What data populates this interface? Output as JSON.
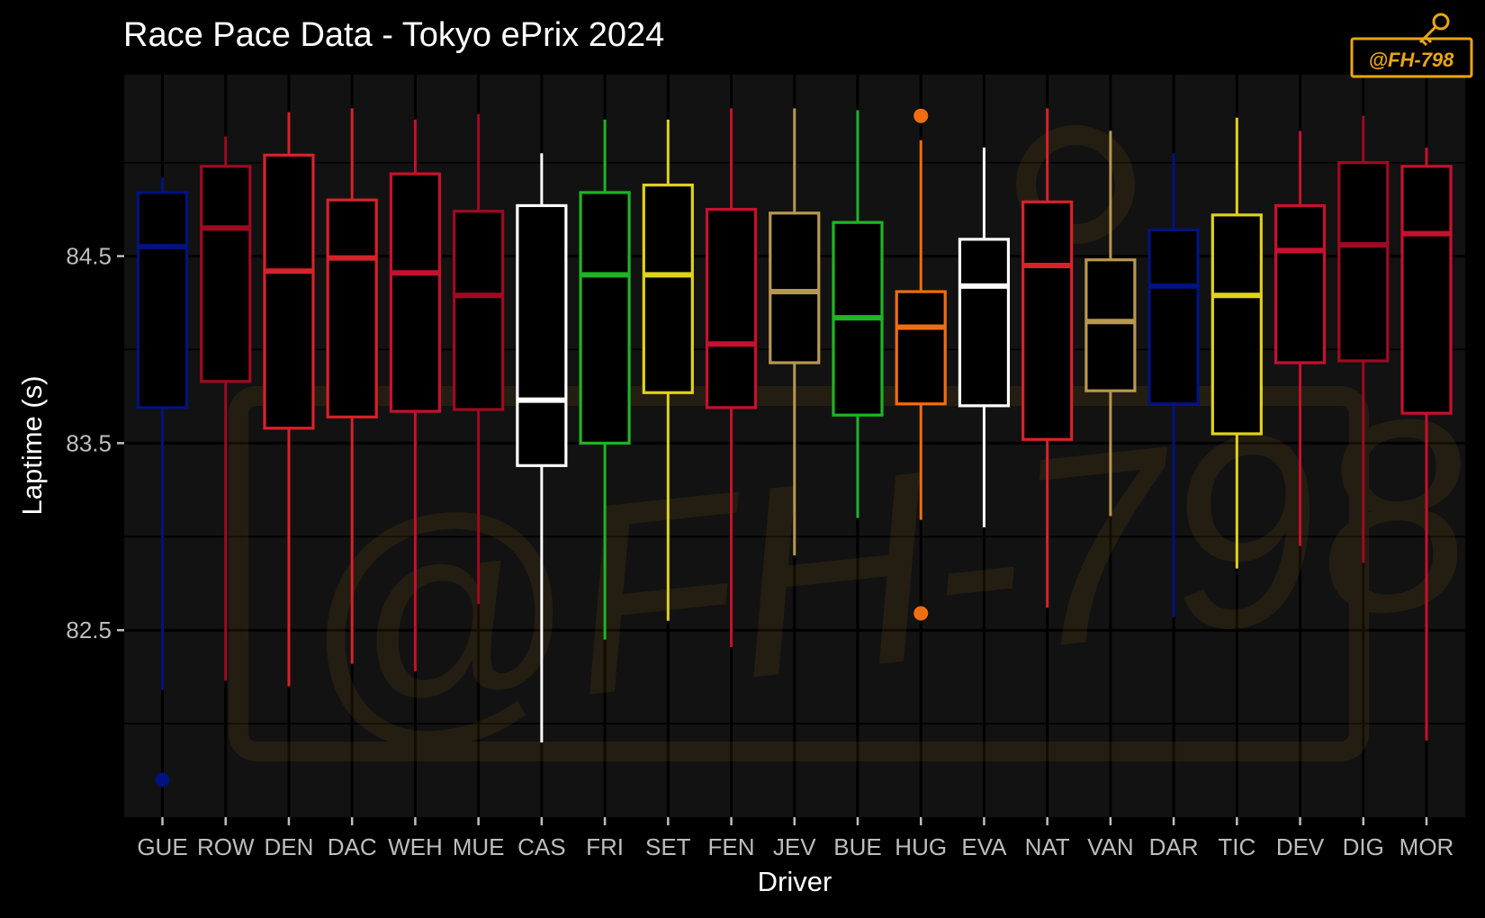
{
  "chart_data": {
    "type": "boxplot",
    "title": "Race Pace Data - Tokyo ePrix 2024",
    "xlabel": "Driver",
    "ylabel": "Laptime (s)",
    "ylim": [
      81.5,
      85.47
    ],
    "y_ticks": [
      82.5,
      83.5,
      84.5
    ],
    "y_minor_ticks": [
      82.0,
      83.0,
      84.0,
      85.0
    ],
    "grid": true,
    "legend": "none",
    "watermark": "@FH-798",
    "categories": [
      "GUE",
      "ROW",
      "DEN",
      "DAC",
      "WEH",
      "MUE",
      "CAS",
      "FRI",
      "SET",
      "FEN",
      "JEV",
      "BUE",
      "HUG",
      "EVA",
      "NAT",
      "VAN",
      "DAR",
      "TIC",
      "DEV",
      "DIG",
      "MOR"
    ],
    "series": [
      {
        "driver": "GUE",
        "color": "#00137f",
        "whisker_low": 82.18,
        "q1": 83.69,
        "median": 84.55,
        "q3": 84.84,
        "whisker_high": 84.92,
        "outliers": [
          81.7
        ]
      },
      {
        "driver": "ROW",
        "color": "#a00a20",
        "whisker_low": 82.23,
        "q1": 83.83,
        "median": 84.65,
        "q3": 84.98,
        "whisker_high": 85.14,
        "outliers": []
      },
      {
        "driver": "DEN",
        "color": "#d8222a",
        "whisker_low": 82.2,
        "q1": 83.58,
        "median": 84.42,
        "q3": 85.04,
        "whisker_high": 85.27,
        "outliers": []
      },
      {
        "driver": "DAC",
        "color": "#d8222a",
        "whisker_low": 82.32,
        "q1": 83.64,
        "median": 84.49,
        "q3": 84.8,
        "whisker_high": 85.29,
        "outliers": []
      },
      {
        "driver": "WEH",
        "color": "#c8102e",
        "whisker_low": 82.28,
        "q1": 83.67,
        "median": 84.41,
        "q3": 84.94,
        "whisker_high": 85.23,
        "outliers": []
      },
      {
        "driver": "MUE",
        "color": "#a00a20",
        "whisker_low": 82.64,
        "q1": 83.68,
        "median": 84.29,
        "q3": 84.74,
        "whisker_high": 85.26,
        "outliers": []
      },
      {
        "driver": "CAS",
        "color": "#ffffff",
        "whisker_low": 81.9,
        "q1": 83.38,
        "median": 83.73,
        "q3": 84.77,
        "whisker_high": 85.05,
        "outliers": []
      },
      {
        "driver": "FRI",
        "color": "#1fb425",
        "whisker_low": 82.45,
        "q1": 83.5,
        "median": 84.4,
        "q3": 84.84,
        "whisker_high": 85.23,
        "outliers": []
      },
      {
        "driver": "SET",
        "color": "#e0d31b",
        "whisker_low": 82.55,
        "q1": 83.77,
        "median": 84.4,
        "q3": 84.88,
        "whisker_high": 85.23,
        "outliers": []
      },
      {
        "driver": "FEN",
        "color": "#c8102e",
        "whisker_low": 82.41,
        "q1": 83.69,
        "median": 84.03,
        "q3": 84.75,
        "whisker_high": 85.29,
        "outliers": []
      },
      {
        "driver": "JEV",
        "color": "#b8974f",
        "whisker_low": 82.9,
        "q1": 83.93,
        "median": 84.31,
        "q3": 84.73,
        "whisker_high": 85.29,
        "outliers": []
      },
      {
        "driver": "BUE",
        "color": "#1fb425",
        "whisker_low": 83.1,
        "q1": 83.65,
        "median": 84.17,
        "q3": 84.68,
        "whisker_high": 85.28,
        "outliers": []
      },
      {
        "driver": "HUG",
        "color": "#f06e0f",
        "whisker_low": 83.09,
        "q1": 83.71,
        "median": 84.12,
        "q3": 84.31,
        "whisker_high": 85.12,
        "outliers": [
          85.25,
          82.59
        ]
      },
      {
        "driver": "EVA",
        "color": "#ffffff",
        "whisker_low": 83.05,
        "q1": 83.7,
        "median": 84.34,
        "q3": 84.59,
        "whisker_high": 85.08,
        "outliers": []
      },
      {
        "driver": "NAT",
        "color": "#d8222a",
        "whisker_low": 82.62,
        "q1": 83.52,
        "median": 84.45,
        "q3": 84.79,
        "whisker_high": 85.29,
        "outliers": []
      },
      {
        "driver": "VAN",
        "color": "#b8974f",
        "whisker_low": 83.11,
        "q1": 83.78,
        "median": 84.15,
        "q3": 84.48,
        "whisker_high": 85.17,
        "outliers": []
      },
      {
        "driver": "DAR",
        "color": "#00137f",
        "whisker_low": 82.57,
        "q1": 83.71,
        "median": 84.34,
        "q3": 84.64,
        "whisker_high": 85.05,
        "outliers": []
      },
      {
        "driver": "TIC",
        "color": "#e0d31b",
        "whisker_low": 82.83,
        "q1": 83.55,
        "median": 84.29,
        "q3": 84.72,
        "whisker_high": 85.24,
        "outliers": []
      },
      {
        "driver": "DEV",
        "color": "#c8102e",
        "whisker_low": 82.95,
        "q1": 83.93,
        "median": 84.53,
        "q3": 84.77,
        "whisker_high": 85.17,
        "outliers": []
      },
      {
        "driver": "DIG",
        "color": "#a00a20",
        "whisker_low": 82.86,
        "q1": 83.94,
        "median": 84.56,
        "q3": 85.0,
        "whisker_high": 85.25,
        "outliers": []
      },
      {
        "driver": "MOR",
        "color": "#c8102e",
        "whisker_low": 81.91,
        "q1": 83.66,
        "median": 84.62,
        "q3": 84.98,
        "whisker_high": 85.08,
        "outliers": []
      }
    ]
  }
}
